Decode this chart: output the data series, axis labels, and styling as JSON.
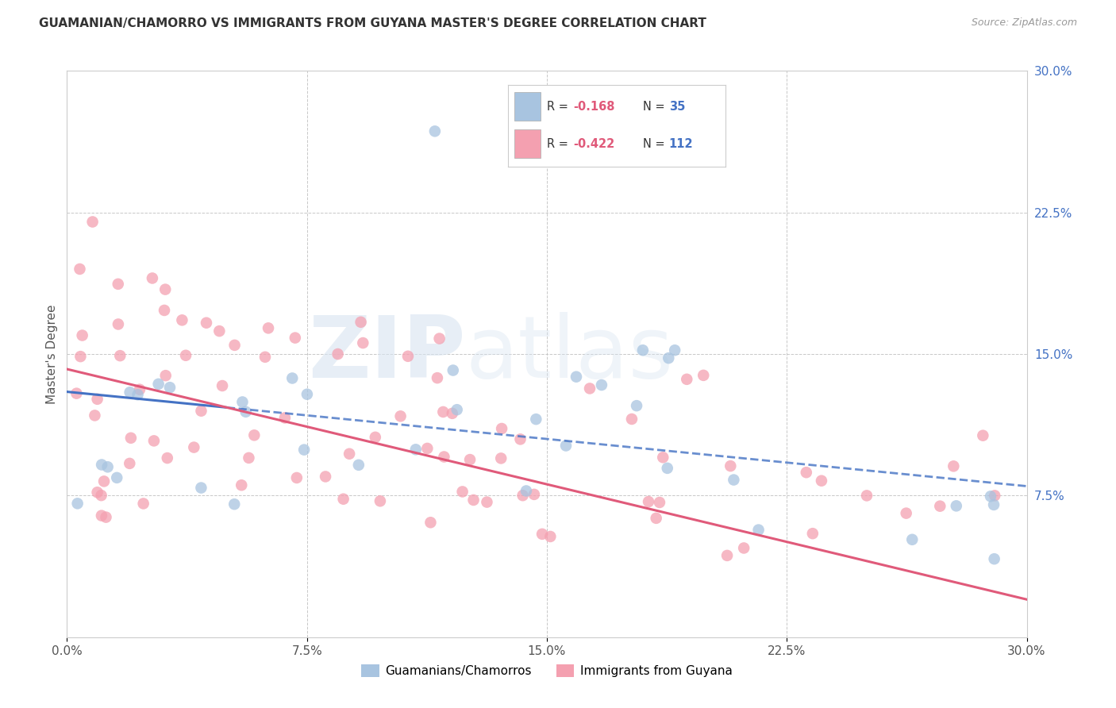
{
  "title": "GUAMANIAN/CHAMORRO VS IMMIGRANTS FROM GUYANA MASTER'S DEGREE CORRELATION CHART",
  "source": "Source: ZipAtlas.com",
  "ylabel": "Master's Degree",
  "xlim": [
    0.0,
    0.3
  ],
  "ylim": [
    0.0,
    0.3
  ],
  "legend_label1": "Guamanians/Chamorros",
  "legend_label2": "Immigrants from Guyana",
  "R1": -0.168,
  "N1": 35,
  "R2": -0.422,
  "N2": 112,
  "color1": "#a8c4e0",
  "color2": "#f4a0b0",
  "line_color1": "#4472c4",
  "line_color2": "#e05a7a",
  "background_color": "#ffffff",
  "grid_color": "#c8c8c8",
  "line1_start_y": 0.13,
  "line1_end_y": 0.08,
  "line2_start_y": 0.142,
  "line2_end_y": 0.02,
  "scatter1_x": [
    0.008,
    0.012,
    0.018,
    0.022,
    0.025,
    0.028,
    0.032,
    0.038,
    0.042,
    0.048,
    0.052,
    0.058,
    0.062,
    0.068,
    0.075,
    0.082,
    0.088,
    0.095,
    0.105,
    0.115,
    0.125,
    0.135,
    0.145,
    0.158,
    0.168,
    0.182,
    0.195,
    0.21,
    0.225,
    0.24,
    0.255,
    0.268,
    0.278,
    0.285,
    0.295
  ],
  "scatter1_y": [
    0.125,
    0.115,
    0.12,
    0.13,
    0.115,
    0.122,
    0.118,
    0.113,
    0.125,
    0.11,
    0.115,
    0.118,
    0.15,
    0.148,
    0.15,
    0.112,
    0.108,
    0.095,
    0.14,
    0.268,
    0.12,
    0.105,
    0.098,
    0.108,
    0.095,
    0.152,
    0.152,
    0.088,
    0.075,
    0.072,
    0.038,
    0.042,
    0.075,
    0.078,
    0.078
  ],
  "scatter2_x": [
    0.004,
    0.006,
    0.008,
    0.01,
    0.012,
    0.015,
    0.018,
    0.02,
    0.022,
    0.025,
    0.028,
    0.03,
    0.032,
    0.035,
    0.038,
    0.04,
    0.042,
    0.045,
    0.048,
    0.05,
    0.052,
    0.055,
    0.058,
    0.06,
    0.062,
    0.065,
    0.068,
    0.07,
    0.072,
    0.075,
    0.078,
    0.08,
    0.082,
    0.085,
    0.088,
    0.09,
    0.092,
    0.095,
    0.098,
    0.1,
    0.102,
    0.105,
    0.108,
    0.11,
    0.112,
    0.115,
    0.118,
    0.12,
    0.122,
    0.125,
    0.128,
    0.13,
    0.132,
    0.135,
    0.138,
    0.14,
    0.142,
    0.145,
    0.148,
    0.15,
    0.152,
    0.155,
    0.158,
    0.16,
    0.162,
    0.165,
    0.168,
    0.17,
    0.175,
    0.18,
    0.185,
    0.19,
    0.195,
    0.2,
    0.205,
    0.21,
    0.215,
    0.22,
    0.225,
    0.23,
    0.235,
    0.24,
    0.245,
    0.25,
    0.255,
    0.26,
    0.265,
    0.27,
    0.275,
    0.28,
    0.285,
    0.288,
    0.29,
    0.292,
    0.294,
    0.005,
    0.007,
    0.009,
    0.013,
    0.016,
    0.019,
    0.023,
    0.027,
    0.033,
    0.037,
    0.043,
    0.047,
    0.053,
    0.057,
    0.063,
    0.067,
    0.073
  ],
  "scatter2_y": [
    0.135,
    0.19,
    0.17,
    0.16,
    0.175,
    0.145,
    0.168,
    0.155,
    0.165,
    0.155,
    0.158,
    0.148,
    0.16,
    0.155,
    0.148,
    0.162,
    0.155,
    0.148,
    0.152,
    0.142,
    0.138,
    0.148,
    0.135,
    0.145,
    0.152,
    0.138,
    0.142,
    0.148,
    0.135,
    0.13,
    0.138,
    0.135,
    0.128,
    0.138,
    0.132,
    0.128,
    0.122,
    0.128,
    0.118,
    0.122,
    0.128,
    0.118,
    0.122,
    0.115,
    0.12,
    0.112,
    0.118,
    0.108,
    0.112,
    0.108,
    0.115,
    0.108,
    0.112,
    0.102,
    0.108,
    0.105,
    0.11,
    0.102,
    0.105,
    0.098,
    0.105,
    0.098,
    0.102,
    0.095,
    0.102,
    0.092,
    0.098,
    0.088,
    0.095,
    0.088,
    0.092,
    0.085,
    0.088,
    0.082,
    0.088,
    0.082,
    0.085,
    0.078,
    0.082,
    0.075,
    0.078,
    0.072,
    0.075,
    0.068,
    0.072,
    0.065,
    0.068,
    0.062,
    0.065,
    0.058,
    0.062,
    0.055,
    0.058,
    0.048,
    0.052,
    0.138,
    0.175,
    0.162,
    0.155,
    0.148,
    0.142,
    0.155,
    0.148,
    0.138,
    0.13,
    0.138,
    0.125,
    0.132,
    0.118,
    0.128,
    0.122,
    0.115
  ]
}
